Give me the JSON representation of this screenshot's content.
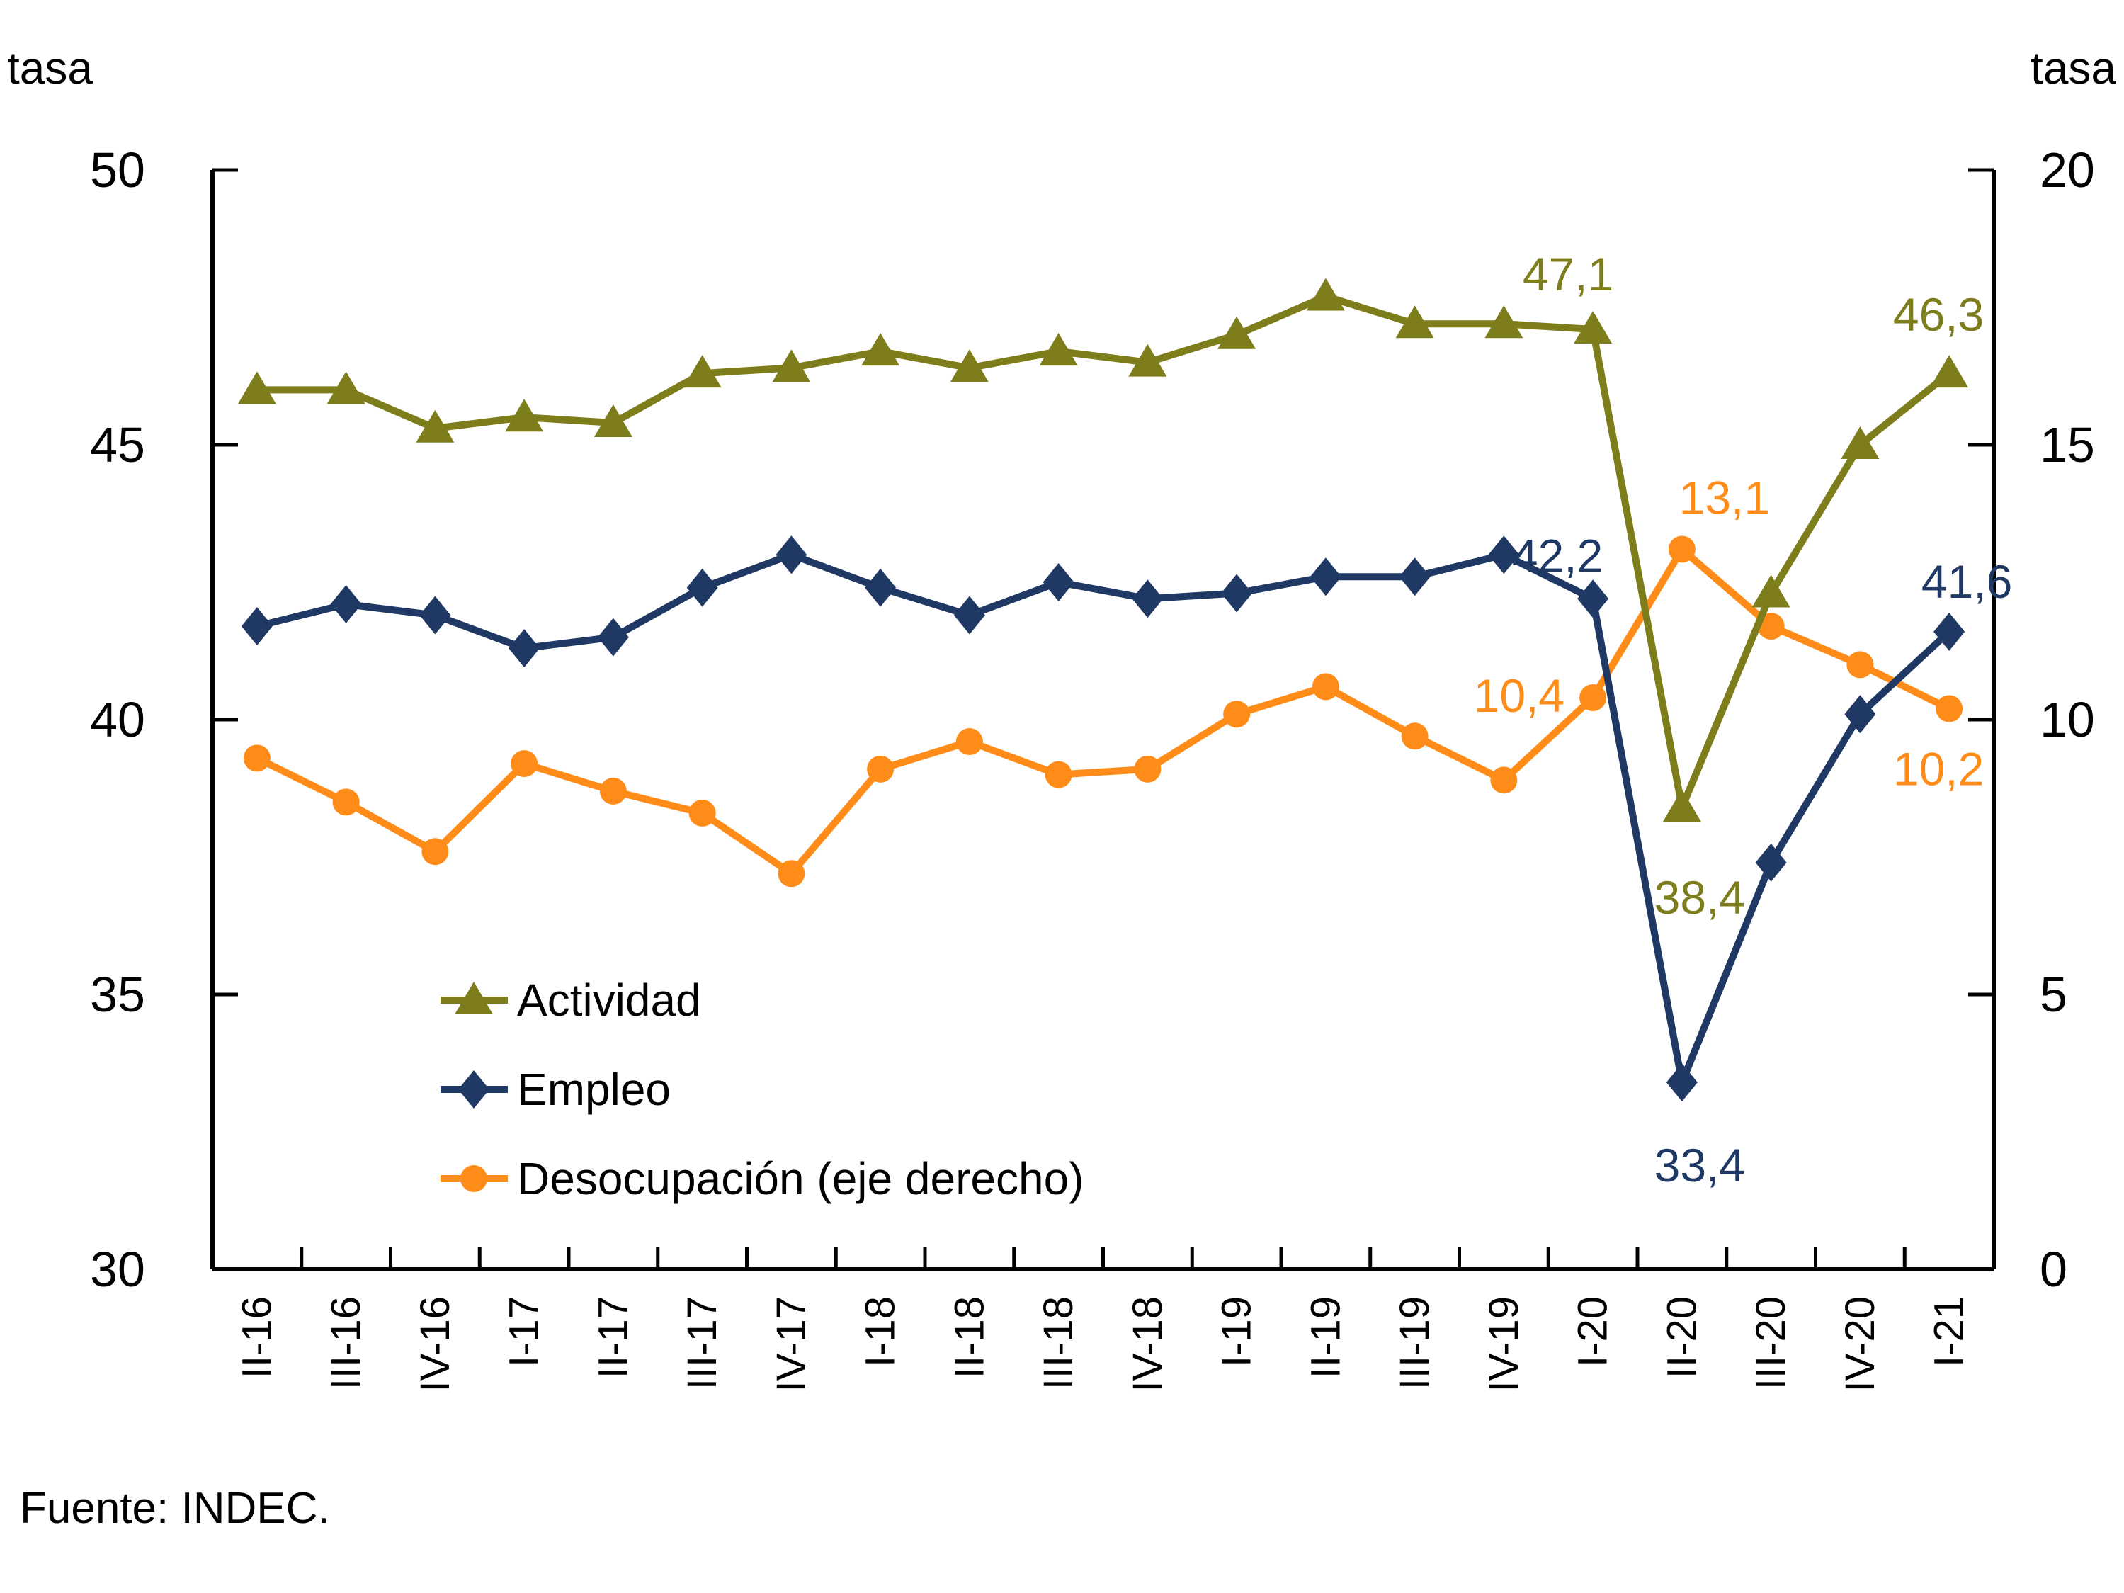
{
  "axis_titles": {
    "left": "tasa",
    "right": "tasa"
  },
  "source_note": "Fuente: INDEC.",
  "colors": {
    "actividad": "#7E7D1B",
    "empleo": "#1F3864",
    "desocupacion": "#FF8C19",
    "axis": "#000000",
    "text": "#000000",
    "background": "#FFFFFF"
  },
  "chart_data": {
    "type": "line",
    "categories": [
      "II-16",
      "III-16",
      "IV-16",
      "I-17",
      "II-17",
      "III-17",
      "IV-17",
      "I-18",
      "II-18",
      "III-18",
      "IV-18",
      "I-19",
      "II-19",
      "III-19",
      "IV-19",
      "I-20",
      "II-20",
      "III-20",
      "IV-20",
      "I-21"
    ],
    "series": [
      {
        "id": "actividad",
        "name": "Actividad",
        "axis": "left",
        "marker": "triangle",
        "color": "#7E7D1B",
        "values": [
          46.0,
          46.0,
          45.3,
          45.5,
          45.4,
          46.3,
          46.4,
          46.7,
          46.4,
          46.7,
          46.5,
          47.0,
          47.7,
          47.2,
          47.2,
          47.1,
          38.4,
          42.3,
          45.0,
          46.3
        ]
      },
      {
        "id": "empleo",
        "name": "Empleo",
        "axis": "left",
        "marker": "diamond",
        "color": "#1F3864",
        "values": [
          41.7,
          42.1,
          41.9,
          41.3,
          41.5,
          42.4,
          43.0,
          42.4,
          41.9,
          42.5,
          42.2,
          42.3,
          42.6,
          42.6,
          43.0,
          42.2,
          33.4,
          37.4,
          40.1,
          41.6
        ]
      },
      {
        "id": "desocupacion",
        "name": "Desocupación (eje derecho)",
        "axis": "right",
        "marker": "circle",
        "color": "#FF8C19",
        "values": [
          9.3,
          8.5,
          7.6,
          9.2,
          8.7,
          8.3,
          7.2,
          9.1,
          9.6,
          9.0,
          9.1,
          10.1,
          10.6,
          9.7,
          8.9,
          10.4,
          13.1,
          11.7,
          11.0,
          10.2
        ]
      }
    ],
    "left_axis": {
      "label": "tasa",
      "min": 30,
      "max": 50,
      "ticks": [
        30,
        35,
        40,
        45,
        50
      ]
    },
    "right_axis": {
      "label": "tasa",
      "min": 0,
      "max": 20,
      "ticks": [
        0,
        5,
        10,
        15,
        20
      ]
    },
    "point_labels": [
      {
        "series": 0,
        "index": 15,
        "text": "47,1"
      },
      {
        "series": 0,
        "index": 16,
        "text": "38,4"
      },
      {
        "series": 0,
        "index": 19,
        "text": "46,3"
      },
      {
        "series": 1,
        "index": 15,
        "text": "42,2"
      },
      {
        "series": 1,
        "index": 16,
        "text": "33,4"
      },
      {
        "series": 1,
        "index": 19,
        "text": "41,6"
      },
      {
        "series": 2,
        "index": 15,
        "text": "10,4"
      },
      {
        "series": 2,
        "index": 16,
        "text": "13,1"
      },
      {
        "series": 2,
        "index": 19,
        "text": "10,2"
      }
    ],
    "grid": false,
    "legend_position": "inside-left-bottom"
  }
}
